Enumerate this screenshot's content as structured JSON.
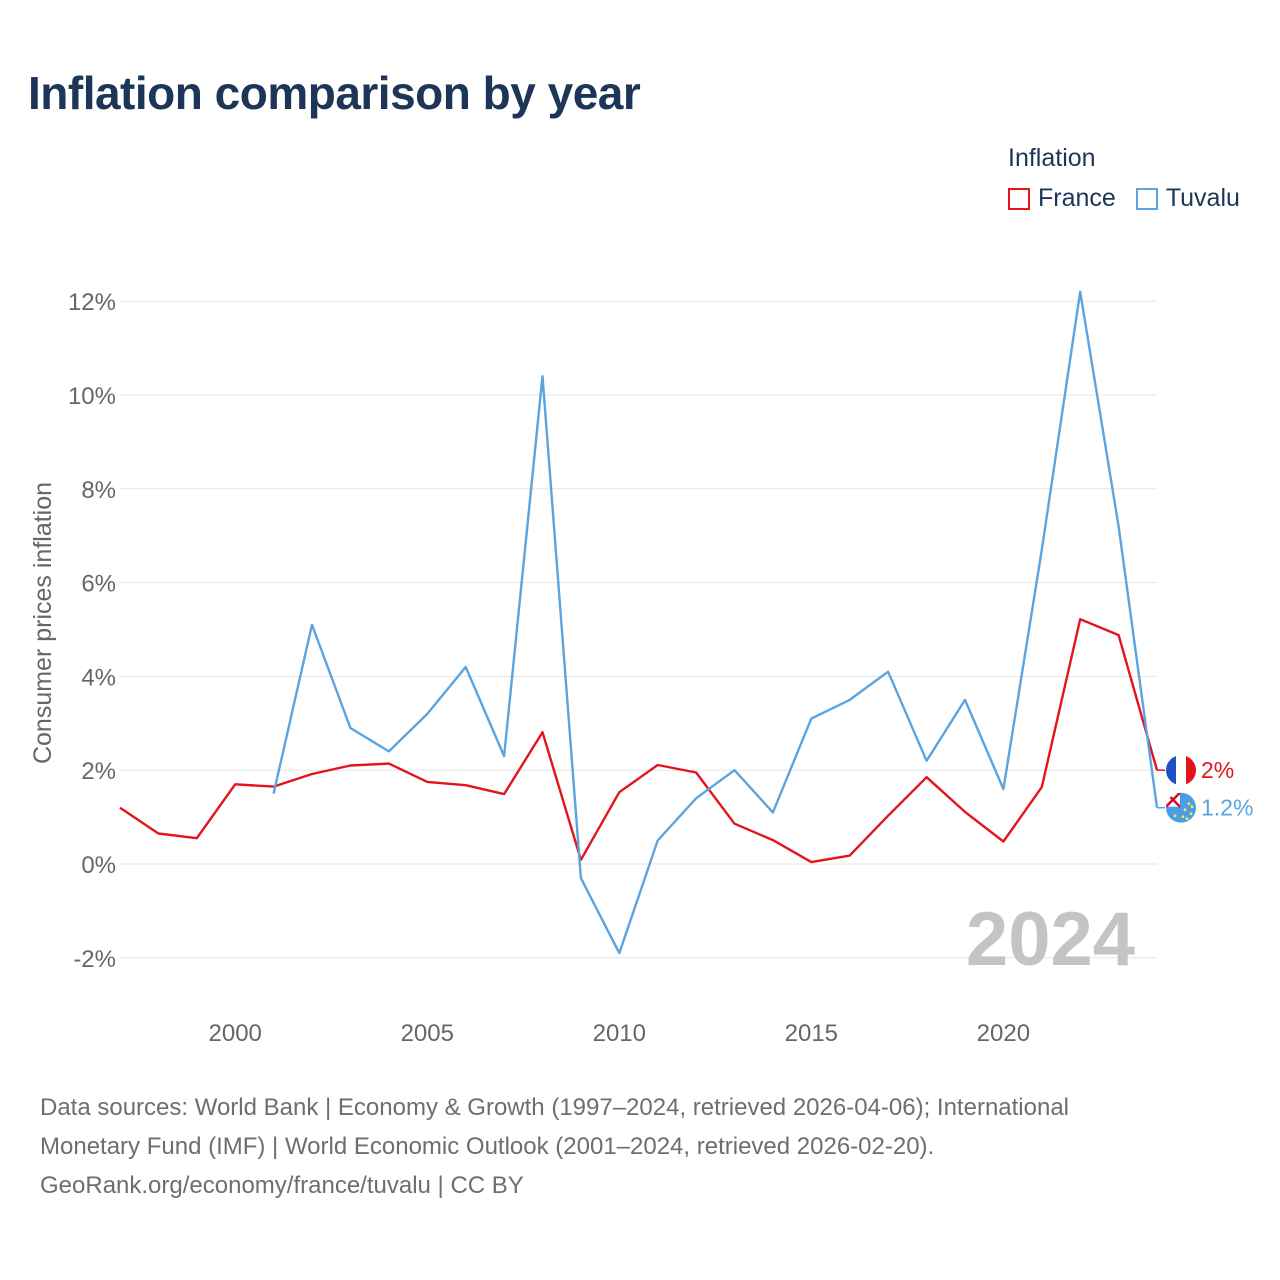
{
  "title": "Inflation comparison by year",
  "legend": {
    "title": "Inflation",
    "items": [
      {
        "label": "France",
        "color": "#e3141b"
      },
      {
        "label": "Tuvalu",
        "color": "#5ba4e0"
      }
    ]
  },
  "chart_data": {
    "type": "line",
    "title": "Inflation comparison by year",
    "xlabel": "",
    "ylabel": "Consumer prices inflation",
    "xlim": [
      1997,
      2024
    ],
    "ylim": [
      -3,
      12.5
    ],
    "yticks": [
      -2,
      0,
      2,
      4,
      6,
      8,
      10,
      12
    ],
    "ytick_labels": [
      "-2%",
      "0%",
      "2%",
      "4%",
      "6%",
      "8%",
      "10%",
      "12%"
    ],
    "xticks": [
      2000,
      2005,
      2010,
      2015,
      2020
    ],
    "xtick_labels": [
      "2000",
      "2005",
      "2010",
      "2015",
      "2020"
    ],
    "grid": true,
    "year_watermark": "2024",
    "series": [
      {
        "name": "France",
        "color": "#e3141b",
        "end_label": "2%",
        "x": [
          1997,
          1998,
          1999,
          2000,
          2001,
          2002,
          2003,
          2004,
          2005,
          2006,
          2007,
          2008,
          2009,
          2010,
          2011,
          2012,
          2013,
          2014,
          2015,
          2016,
          2017,
          2018,
          2019,
          2020,
          2021,
          2022,
          2023,
          2024
        ],
        "values": [
          1.2,
          0.65,
          0.55,
          1.7,
          1.65,
          1.92,
          2.1,
          2.14,
          1.75,
          1.68,
          1.49,
          2.81,
          0.09,
          1.53,
          2.11,
          1.95,
          0.86,
          0.51,
          0.04,
          0.18,
          1.03,
          1.85,
          1.11,
          0.48,
          1.64,
          5.22,
          4.88,
          2.0
        ]
      },
      {
        "name": "Tuvalu",
        "color": "#5ba4e0",
        "end_label": "1.2%",
        "x": [
          2001,
          2002,
          2003,
          2004,
          2005,
          2006,
          2007,
          2008,
          2009,
          2010,
          2011,
          2012,
          2013,
          2014,
          2015,
          2016,
          2017,
          2018,
          2019,
          2020,
          2021,
          2022,
          2023,
          2024
        ],
        "values": [
          1.5,
          5.1,
          2.9,
          2.4,
          3.2,
          4.2,
          2.3,
          10.4,
          -0.3,
          -1.9,
          0.5,
          1.4,
          2.0,
          1.1,
          3.1,
          3.5,
          4.1,
          2.2,
          3.5,
          1.6,
          6.7,
          12.2,
          7.2,
          1.2
        ]
      }
    ]
  },
  "footer": {
    "line1": "Data sources: World Bank | Economy & Growth (1997–2024, retrieved 2026-04-06); International",
    "line2": "Monetary Fund (IMF) | World Economic Outlook (2001–2024, retrieved 2026-02-20).",
    "line3": "GeoRank.org/economy/france/tuvalu | CC BY"
  }
}
